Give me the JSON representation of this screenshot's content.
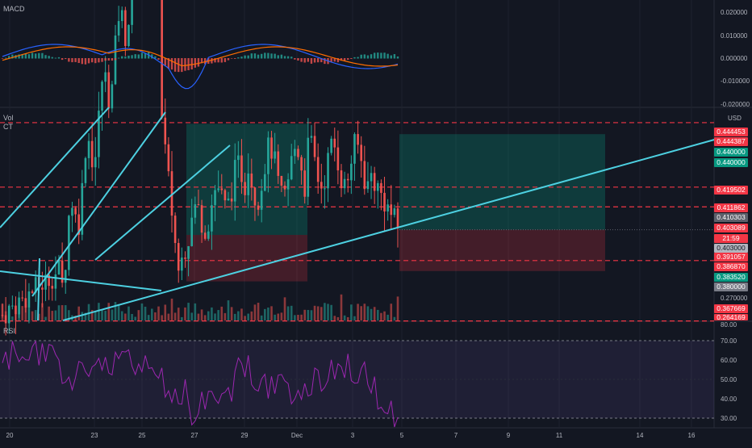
{
  "panels": {
    "macd": {
      "label": "MACD",
      "ticks": [
        "0.020000",
        "0.010000",
        "0.000000",
        "-0.010000",
        "-0.020000"
      ]
    },
    "price": {
      "vol_label": "Vol",
      "ct_label": "CT",
      "currency": "USD",
      "ticks": [
        "0.270000",
        "0.264169"
      ]
    },
    "rsi": {
      "label": "RSI",
      "ticks": [
        "80.00",
        "70.00",
        "60.00",
        "50.00",
        "40.00",
        "30.00"
      ]
    }
  },
  "price_levels": [
    {
      "label": "0.444453",
      "color": "#f23645"
    },
    {
      "label": "0.444387",
      "color": "#f23645"
    },
    {
      "label": "0.440000",
      "color": "#089981"
    },
    {
      "label": "0.440000",
      "color": "#089981"
    },
    {
      "label": "0.419502",
      "color": "#f23645"
    },
    {
      "label": "0.411862",
      "color": "#f23645"
    },
    {
      "label": "0.410303",
      "color": "#5d606b"
    },
    {
      "label": "0.403089",
      "color": "#f23645"
    },
    {
      "label": "21:59",
      "color": "#f23645"
    },
    {
      "label": "0.403000",
      "color": "#b2b5be"
    },
    {
      "label": "0.391057",
      "color": "#f23645"
    },
    {
      "label": "0.386870",
      "color": "#f23645"
    },
    {
      "label": "0.383520",
      "color": "#089981"
    },
    {
      "label": "0.380000",
      "color": "#787b86"
    },
    {
      "label": "0.367669",
      "color": "#f23645"
    },
    {
      "label": "0.264169",
      "color": "#f23645"
    }
  ],
  "x_axis": [
    "20",
    "23",
    "25",
    "27",
    "29",
    "Dec",
    "3",
    "5",
    "7",
    "9",
    "11",
    "14",
    "16"
  ],
  "chart_data": {
    "type": "candlestick",
    "x": [
      "20",
      "23",
      "25",
      "27",
      "29",
      "Dec",
      "3",
      "5",
      "7",
      "9",
      "11",
      "14",
      "16"
    ],
    "price_axis_currency": "USD",
    "horizontal_levels": [
      0.444453,
      0.419502,
      0.411862,
      0.391057,
      0.367669
    ],
    "marked_prices": [
      0.444387,
      0.44,
      0.410303,
      0.403089,
      0.403,
      0.38687,
      0.38352,
      0.38
    ],
    "long_position_1": {
      "target": 0.444,
      "entry": 0.401,
      "stop": 0.383
    },
    "long_position_2": {
      "target": 0.44,
      "entry": 0.403,
      "stop": 0.387
    },
    "rsi_levels": [
      70,
      30
    ],
    "colors": {
      "up": "#26a69a",
      "down": "#ef5350",
      "trendline": "#4dd0e1",
      "rsi": "#9c27b0"
    }
  }
}
